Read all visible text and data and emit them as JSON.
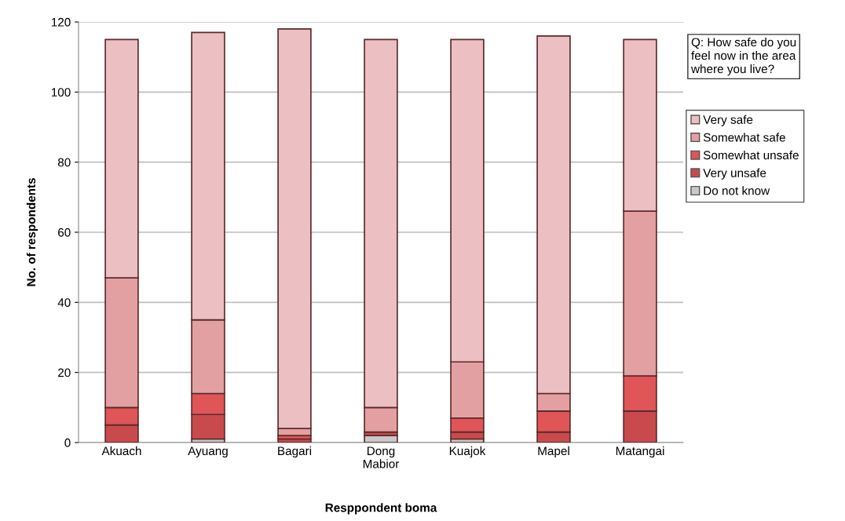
{
  "chart_data": {
    "type": "bar",
    "stacked": true,
    "xlabel": "Resppondent boma",
    "ylabel": "No. of respondents",
    "categories": [
      "Akuach",
      "Ayuang",
      "Bagari",
      "Dong\nMabior",
      "Kuajok",
      "Mapel",
      "Matangai"
    ],
    "series": [
      {
        "name": "Do not know",
        "color": "#c8c8c8",
        "values": [
          null,
          1,
          null,
          2,
          1,
          null,
          null
        ]
      },
      {
        "name": "Very unsafe",
        "color": "#c94a4d",
        "values": [
          5,
          7,
          1,
          1,
          2,
          3,
          9
        ]
      },
      {
        "name": "Somewhat unsafe",
        "color": "#df5558",
        "values": [
          5,
          6,
          1,
          null,
          4,
          6,
          10
        ]
      },
      {
        "name": "Somewhat safe",
        "color": "#e3a0a2",
        "values": [
          37,
          21,
          2,
          7,
          16,
          5,
          47
        ]
      },
      {
        "name": "Very safe",
        "color": "#ecc0c2",
        "values": [
          68,
          82,
          114,
          105,
          92,
          102,
          49
        ]
      }
    ],
    "ylim": [
      0,
      120
    ],
    "yticks": [
      0,
      20,
      40,
      60,
      80,
      100,
      120
    ],
    "grid": "y",
    "legend": "right",
    "annotations": [
      "Q: How safe do you\nfeel now in the area\nwhere you live?"
    ]
  }
}
